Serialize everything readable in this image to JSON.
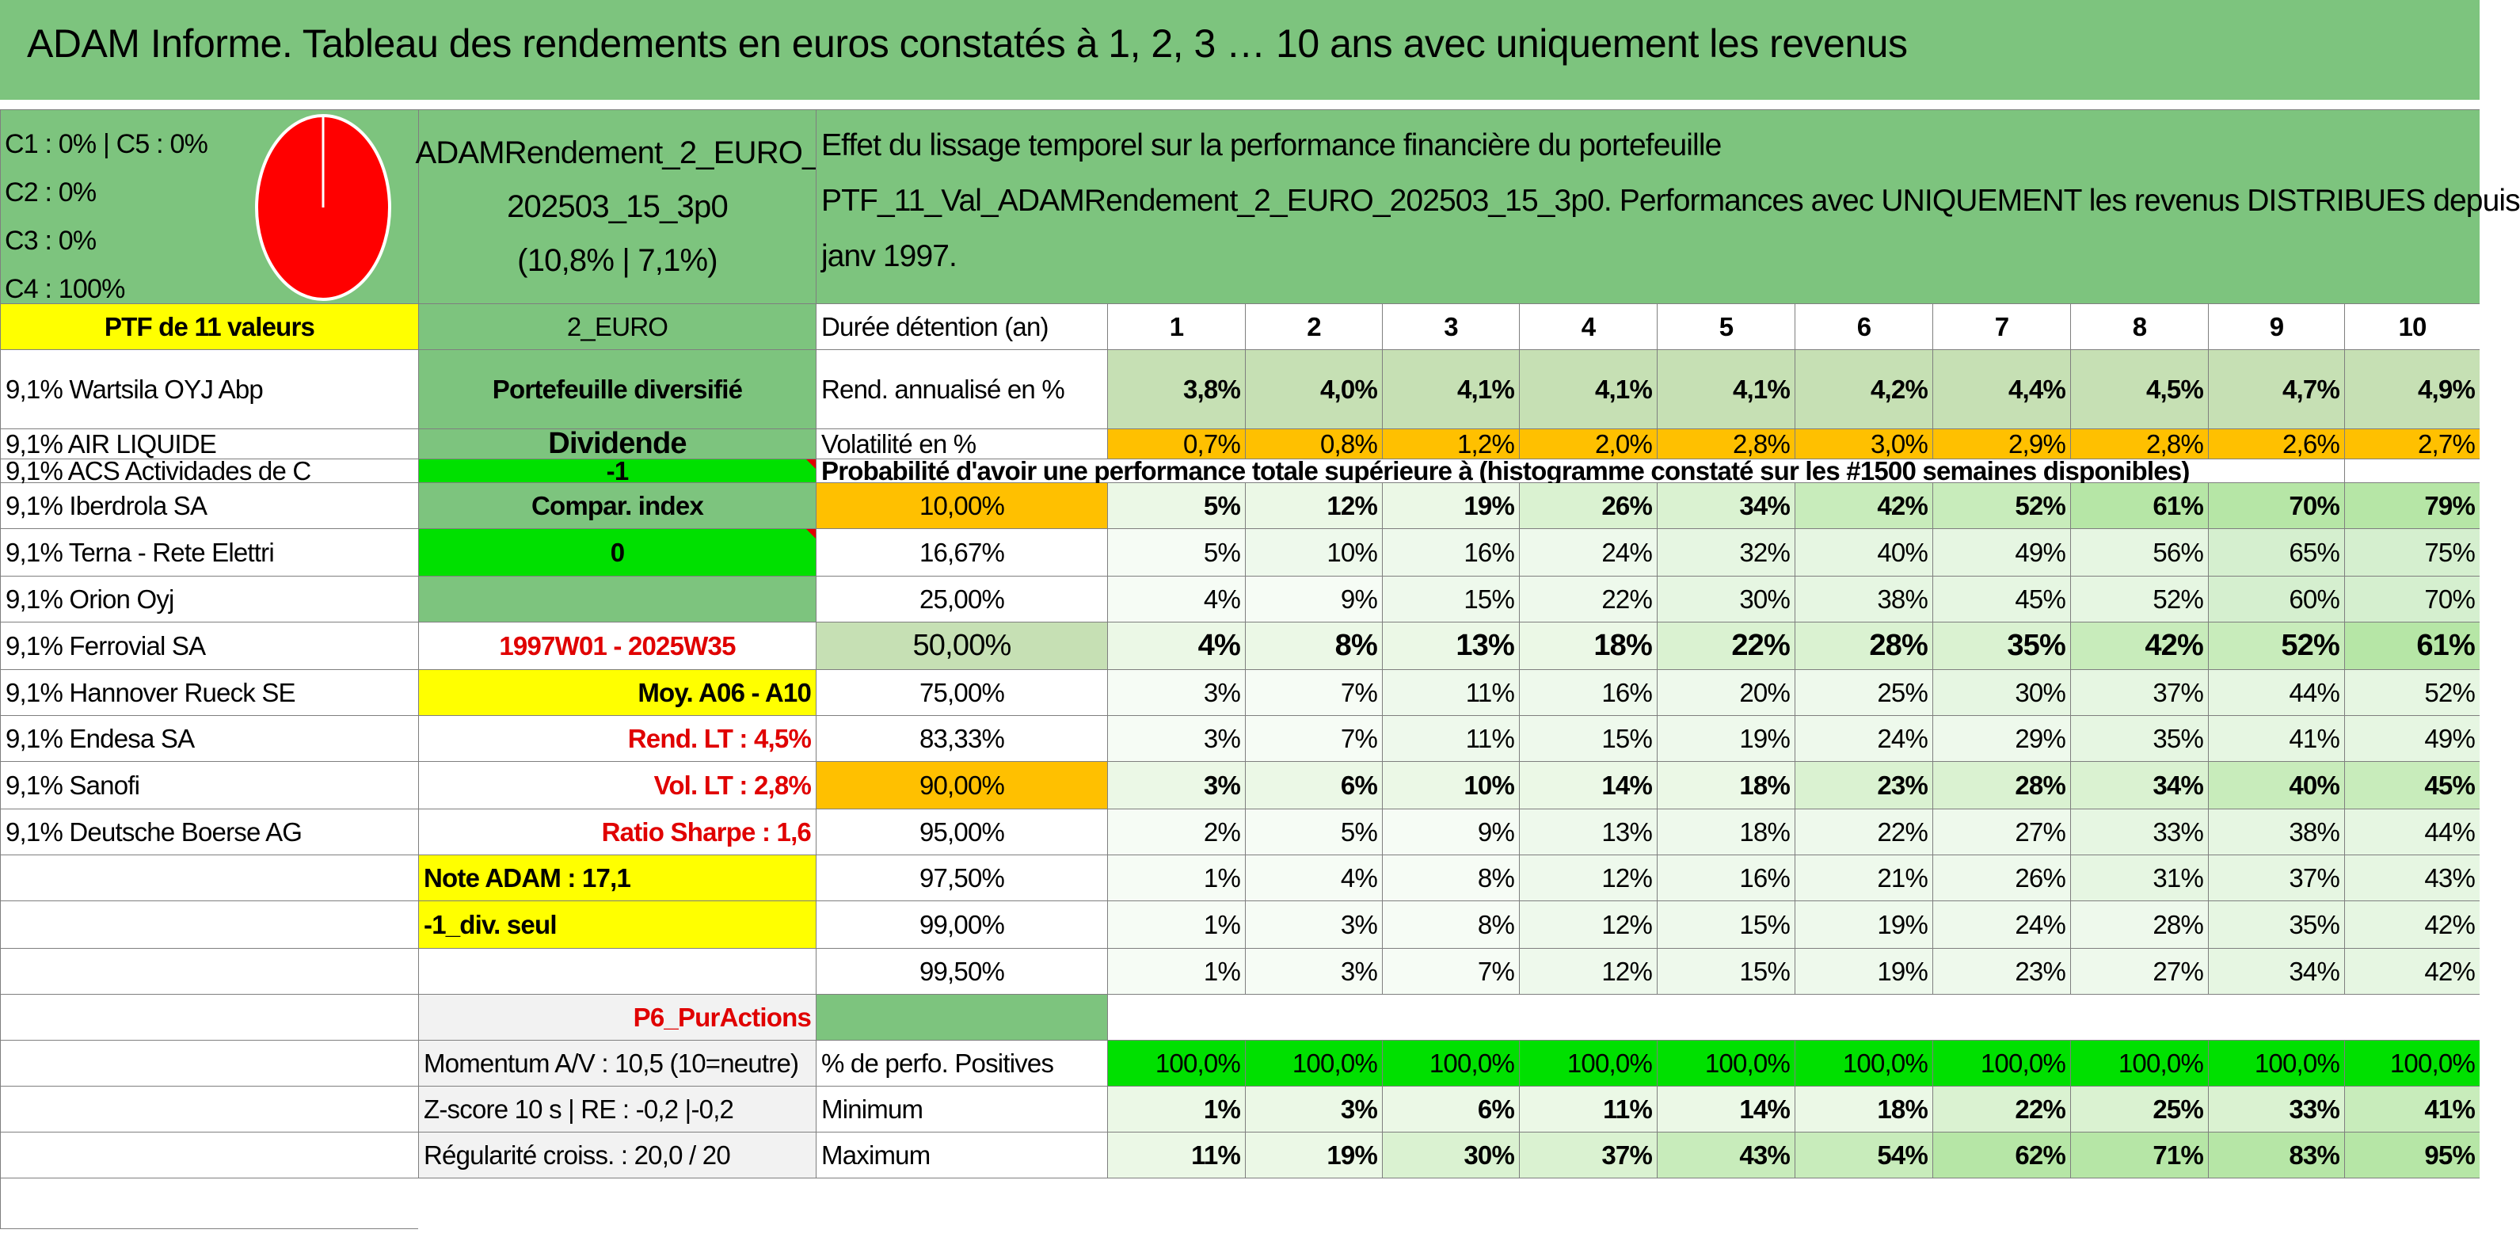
{
  "title": "ADAM Informe. Tableau des rendements en euros constatés à 1, 2, 3 … 10 ans avec uniquement les revenus",
  "colors": {
    "header_green": "#7dc47e",
    "light_green": "#c6e0b4",
    "bright_green": "#00e000",
    "yellow": "#ffff00",
    "orange": "#ffc000",
    "red_text": "#e00000",
    "pie_red": "#ff0000"
  },
  "allocation": {
    "line1": "C1 : 0% | C5 : 0%",
    "line2": "C2 : 0%",
    "line3": "C3 : 0%",
    "line4": "C4 : 100%",
    "pie_c4_fraction": 1.0
  },
  "portfolio_name": {
    "line1": "ADAMRendement_2_EURO_",
    "line2": "202503_15_3p0",
    "line3": "(10,8% | 7,1%)"
  },
  "description": {
    "line1": "Effet du lissage temporel sur la performance financière du portefeuille",
    "line2": "PTF_11_Val_ADAMRendement_2_EURO_202503_15_3p0. Performances avec UNIQUEMENT les revenus DISTRIBUES depuis",
    "line3": "janv 1997."
  },
  "left": {
    "header": "PTF de 11 valeurs",
    "holdings": [
      "9,1% Wartsila OYJ Abp",
      "9,1% AIR LIQUIDE",
      "9,1% ACS Actividades de C",
      "9,1% Iberdrola SA",
      "9,1% Terna - Rete Elettri",
      "9,1% Orion Oyj",
      "9,1% Ferrovial SA",
      "9,1% Hannover Rueck SE",
      "9,1% Endesa SA",
      "9,1% Sanofi",
      "9,1% Deutsche Boerse AG"
    ]
  },
  "info": {
    "code": "2_EURO",
    "type": "Portefeuille diversifié",
    "dividend_label": "Dividende",
    "dividend_value": "-1",
    "compar_label": "Compar. index",
    "compar_value": "0",
    "period": "1997W01 - 2025W35",
    "moy": "Moy. A06 - A10",
    "rend_lt": "Rend. LT : 4,5%",
    "vol_lt": "Vol. LT : 2,8%",
    "sharpe": "Ratio Sharpe : 1,6",
    "note": "Note ADAM : 17,1",
    "div_seul": "-1_div. seul",
    "p6": "P6_PurActions",
    "momentum": "Momentum A/V : 10,5 (10=neutre)",
    "zscore": "Z-score 10 s | RE : -0,2 |-0,2",
    "regularite": "Régularité croiss. : 20,0 / 20"
  },
  "table": {
    "duree_label": "Durée détention (an)",
    "years": [
      "1",
      "2",
      "3",
      "4",
      "5",
      "6",
      "7",
      "8",
      "9",
      "10"
    ],
    "rend_label": "Rend. annualisé en %",
    "rend": [
      "3,8%",
      "4,0%",
      "4,1%",
      "4,1%",
      "4,1%",
      "4,2%",
      "4,4%",
      "4,5%",
      "4,7%",
      "4,9%"
    ],
    "vol_label": "Volatilité en %",
    "vol": [
      "0,7%",
      "0,8%",
      "1,2%",
      "2,0%",
      "2,8%",
      "3,0%",
      "2,9%",
      "2,8%",
      "2,6%",
      "2,7%"
    ],
    "proba_title": "Probabilité d'avoir une performance totale supérieure à (histogramme constaté sur les #1500 semaines disponibles)",
    "proba_rows": [
      {
        "label": "10,00%",
        "values": [
          "5%",
          "12%",
          "19%",
          "26%",
          "34%",
          "42%",
          "52%",
          "61%",
          "70%",
          "79%"
        ]
      },
      {
        "label": "16,67%",
        "values": [
          "5%",
          "10%",
          "16%",
          "24%",
          "32%",
          "40%",
          "49%",
          "56%",
          "65%",
          "75%"
        ]
      },
      {
        "label": "25,00%",
        "values": [
          "4%",
          "9%",
          "15%",
          "22%",
          "30%",
          "38%",
          "45%",
          "52%",
          "60%",
          "70%"
        ]
      },
      {
        "label": "50,00%",
        "values": [
          "4%",
          "8%",
          "13%",
          "18%",
          "22%",
          "28%",
          "35%",
          "42%",
          "52%",
          "61%"
        ]
      },
      {
        "label": "75,00%",
        "values": [
          "3%",
          "7%",
          "11%",
          "16%",
          "20%",
          "25%",
          "30%",
          "37%",
          "44%",
          "52%"
        ]
      },
      {
        "label": "83,33%",
        "values": [
          "3%",
          "7%",
          "11%",
          "15%",
          "19%",
          "24%",
          "29%",
          "35%",
          "41%",
          "49%"
        ]
      },
      {
        "label": "90,00%",
        "values": [
          "3%",
          "6%",
          "10%",
          "14%",
          "18%",
          "23%",
          "28%",
          "34%",
          "40%",
          "45%"
        ]
      },
      {
        "label": "95,00%",
        "values": [
          "2%",
          "5%",
          "9%",
          "13%",
          "18%",
          "22%",
          "27%",
          "33%",
          "38%",
          "44%"
        ]
      },
      {
        "label": "97,50%",
        "values": [
          "1%",
          "4%",
          "8%",
          "12%",
          "16%",
          "21%",
          "26%",
          "31%",
          "37%",
          "43%"
        ]
      },
      {
        "label": "99,00%",
        "values": [
          "1%",
          "3%",
          "8%",
          "12%",
          "15%",
          "19%",
          "24%",
          "28%",
          "35%",
          "42%"
        ]
      },
      {
        "label": "99,50%",
        "values": [
          "1%",
          "3%",
          "7%",
          "12%",
          "15%",
          "19%",
          "23%",
          "27%",
          "34%",
          "42%"
        ]
      }
    ],
    "pos_label": "% de perfo. Positives",
    "pos": [
      "100,0%",
      "100,0%",
      "100,0%",
      "100,0%",
      "100,0%",
      "100,0%",
      "100,0%",
      "100,0%",
      "100,0%",
      "100,0%"
    ],
    "min_label": "Minimum",
    "min": [
      "1%",
      "3%",
      "6%",
      "11%",
      "14%",
      "18%",
      "22%",
      "25%",
      "33%",
      "41%"
    ],
    "max_label": "Maximum",
    "max": [
      "11%",
      "19%",
      "30%",
      "37%",
      "43%",
      "54%",
      "62%",
      "71%",
      "83%",
      "95%"
    ]
  }
}
